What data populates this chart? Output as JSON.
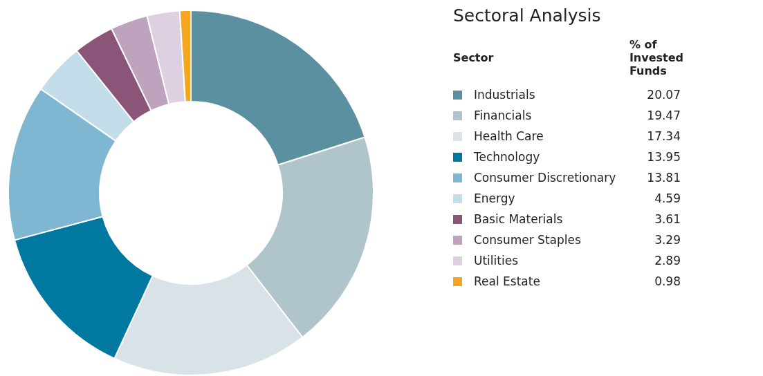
{
  "chart_data": {
    "type": "donut",
    "title": "Sectoral Analysis",
    "legend_title": "Sector",
    "annotations": [
      "% of Invested Funds"
    ],
    "categories": [
      "Industrials",
      "Financials",
      "Health Care",
      "Technology",
      "Consumer Discretionary",
      "Energy",
      "Basic Materials",
      "Consumer Staples",
      "Utilities",
      "Real Estate"
    ],
    "values": [
      20.07,
      19.47,
      17.34,
      13.95,
      13.81,
      4.59,
      3.61,
      3.29,
      2.89,
      0.98
    ],
    "colors": [
      "#5a909f",
      "#b0c4cc",
      "#d9e2e6",
      "#0078a0",
      "#7fb6d2",
      "#c2dce9",
      "#8b5479",
      "#bfa2bd",
      "#ddd0e0",
      "#f5a623"
    ],
    "data_labels": true,
    "legend": "right"
  }
}
